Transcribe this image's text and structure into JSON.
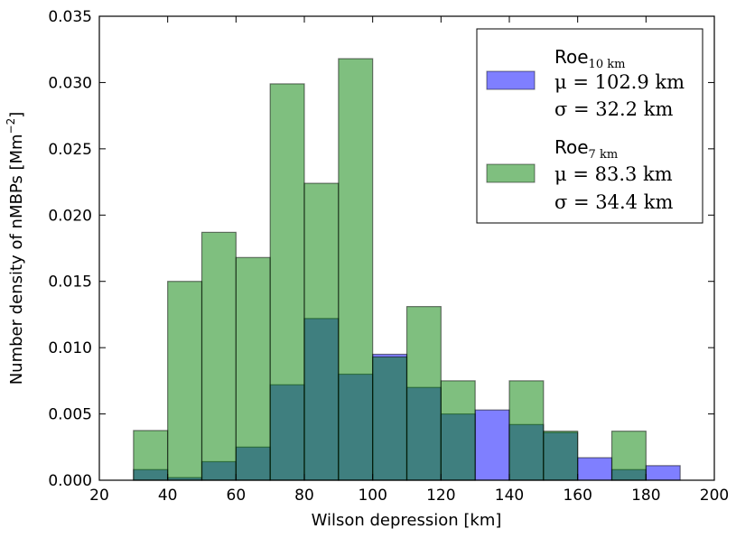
{
  "chart_data": {
    "type": "bar",
    "subtype": "overlapping histogram",
    "bin_edges": [
      30,
      40,
      50,
      60,
      70,
      80,
      90,
      100,
      110,
      120,
      130,
      140,
      150,
      160,
      170,
      180,
      190
    ],
    "series": [
      {
        "name": "Roe_10km",
        "color": "#0000ff",
        "alpha": 0.5,
        "legend": {
          "main": "Roe",
          "sub": "10 km",
          "mu": "μ = 102.9 km",
          "sigma": "σ = 32.2 km"
        },
        "values": [
          0.0008,
          0.0002,
          0.0014,
          0.0025,
          0.0072,
          0.0122,
          0.008,
          0.0095,
          0.007,
          0.005,
          0.0053,
          0.0042,
          0.0036,
          0.0017,
          0.0008,
          0.0011
        ]
      },
      {
        "name": "Roe_7km",
        "color": "#008000",
        "alpha": 0.5,
        "legend": {
          "main": "Roe",
          "sub": "7 km",
          "mu": "μ = 83.3 km",
          "sigma": "σ = 34.4 km"
        },
        "values": [
          0.00375,
          0.015,
          0.0187,
          0.0168,
          0.0299,
          0.0224,
          0.0318,
          0.0093,
          0.0131,
          0.0075,
          0,
          0.0075,
          0.0037,
          0,
          0.0037,
          0
        ]
      }
    ],
    "xlabel": "Wilson depression [km]",
    "ylabel": "Number density of nMBPs [Mm",
    "ylabel_sup": "−2",
    "ylabel_end": "]",
    "xlim": [
      20,
      200
    ],
    "ylim": [
      0,
      0.035
    ],
    "xticks": [
      "20",
      "40",
      "60",
      "80",
      "100",
      "120",
      "140",
      "160",
      "180",
      "200"
    ],
    "yticks": [
      "0.000",
      "0.005",
      "0.010",
      "0.015",
      "0.020",
      "0.025",
      "0.030",
      "0.035"
    ],
    "grid": false,
    "legend_position": "top-right"
  }
}
